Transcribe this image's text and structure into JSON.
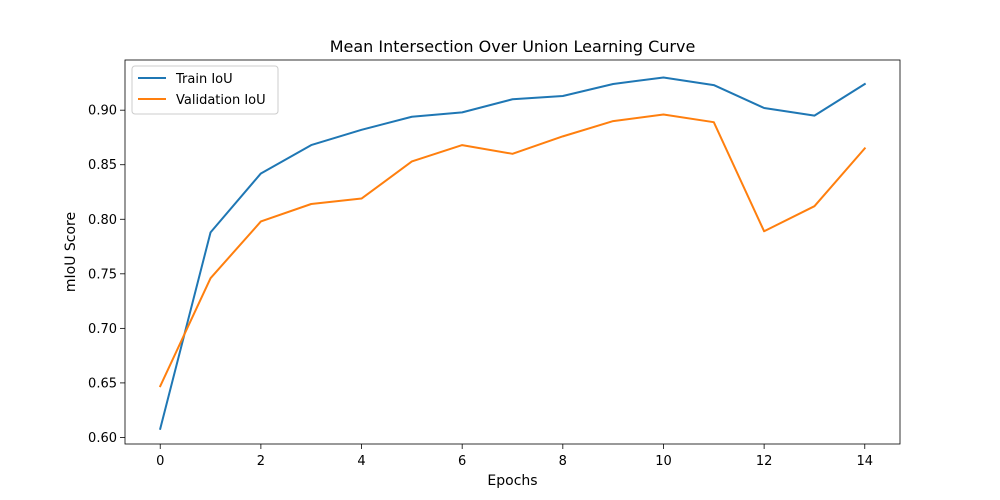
{
  "chart_data": {
    "type": "line",
    "title": "Mean Intersection Over Union Learning Curve",
    "xlabel": "Epochs",
    "ylabel": "mIoU Score",
    "x": [
      0,
      1,
      2,
      3,
      4,
      5,
      6,
      7,
      8,
      9,
      10,
      11,
      12,
      13,
      14
    ],
    "series": [
      {
        "name": "Train IoU",
        "color": "#1f77b4",
        "values": [
          0.608,
          0.788,
          0.842,
          0.868,
          0.882,
          0.894,
          0.898,
          0.91,
          0.913,
          0.924,
          0.93,
          0.923,
          0.902,
          0.895,
          0.924
        ]
      },
      {
        "name": "Validation IoU",
        "color": "#ff7f0e",
        "values": [
          0.647,
          0.746,
          0.798,
          0.814,
          0.819,
          0.853,
          0.868,
          0.86,
          0.876,
          0.89,
          0.896,
          0.889,
          0.789,
          0.812,
          0.865
        ]
      }
    ],
    "xlim": [
      -0.7,
      14.7
    ],
    "ylim": [
      0.594,
      0.946
    ],
    "xticks": [
      0,
      2,
      4,
      6,
      8,
      10,
      12,
      14
    ],
    "xtick_labels": [
      "0",
      "2",
      "4",
      "6",
      "8",
      "10",
      "12",
      "14"
    ],
    "yticks": [
      0.6,
      0.65,
      0.7,
      0.75,
      0.8,
      0.85,
      0.9
    ],
    "ytick_labels": [
      "0.60",
      "0.65",
      "0.70",
      "0.75",
      "0.80",
      "0.85",
      "0.90"
    ],
    "grid": false,
    "legend_position": "top-left"
  }
}
